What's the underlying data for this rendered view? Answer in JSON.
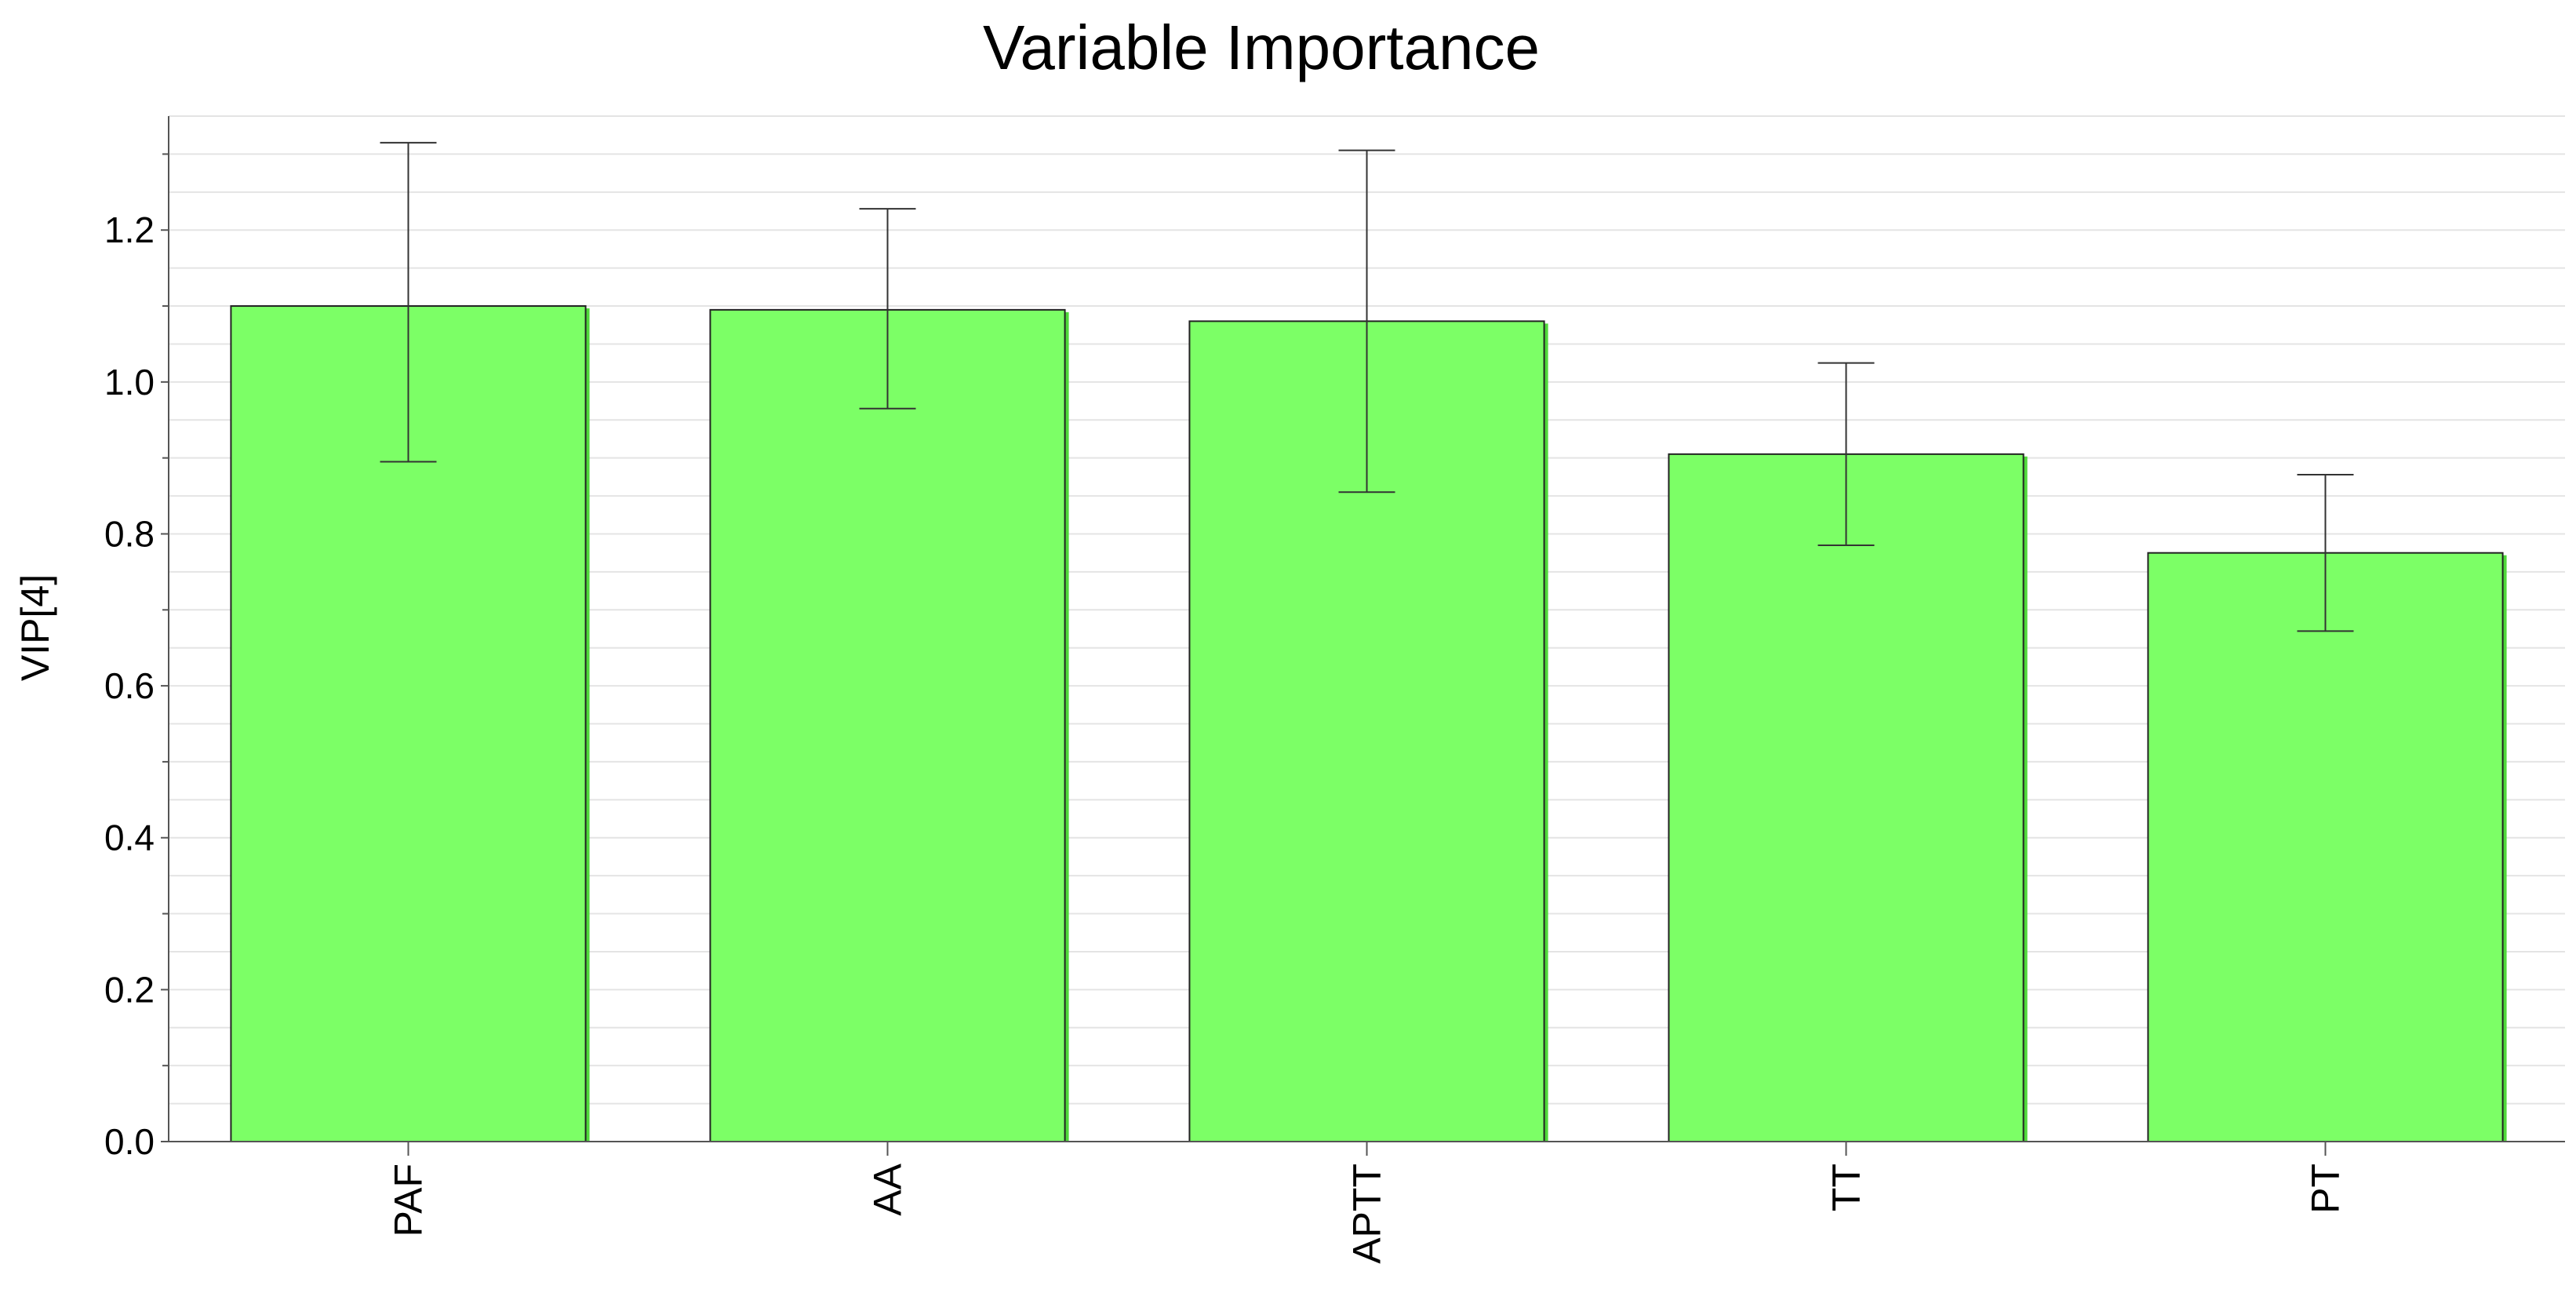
{
  "chart_data": {
    "type": "bar",
    "title": "Variable Importance",
    "xlabel": "",
    "ylabel": "VIP[4]",
    "categories": [
      "PAF",
      "AA",
      "APTT",
      "TT",
      "PT"
    ],
    "values": [
      1.1,
      1.095,
      1.08,
      0.905,
      0.775
    ],
    "error_low": [
      0.895,
      0.965,
      0.855,
      0.785,
      0.672
    ],
    "error_high": [
      1.315,
      1.228,
      1.305,
      1.025,
      0.878
    ],
    "ylim": [
      0,
      1.35
    ],
    "yticks": [
      0.0,
      0.2,
      0.4,
      0.6,
      0.8,
      1.0,
      1.2
    ],
    "ytick_labels": [
      "0.0",
      "0.2",
      "0.4",
      "0.6",
      "0.8",
      "1.0",
      "1.2"
    ],
    "grid": true,
    "bar_color": "#7cff66",
    "bar_edge_color": "#222222",
    "bar_shadow_color": "#4fd83a",
    "grid_color": "#e4e4e4"
  }
}
